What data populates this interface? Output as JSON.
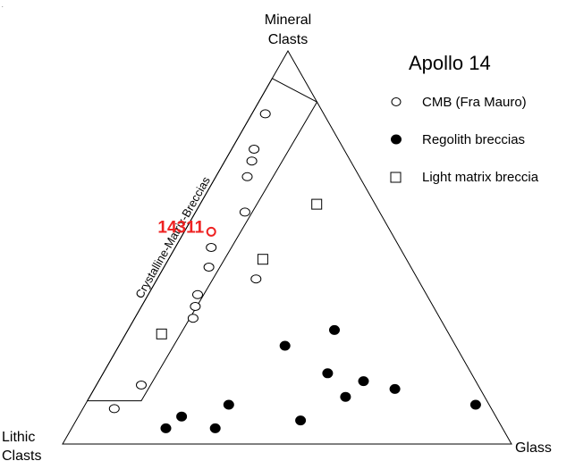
{
  "chart_data": {
    "type": "ternary-scatter",
    "title": "Apollo 14",
    "vertices": {
      "top": [
        "Mineral",
        "Clasts"
      ],
      "left": [
        "Lithic",
        "Clasts"
      ],
      "right": "Glass"
    },
    "field_label": "Crystalline-Matrix-Breccias",
    "annotation": {
      "label": "14311",
      "color": "#ee2222",
      "point": {
        "mineral": 0.54,
        "lithic": 0.4,
        "glass": 0.06
      }
    },
    "legend_position": "top-right",
    "legend": [
      {
        "key": "cmb",
        "label": "CMB (Fra Mauro)",
        "marker": "open-circle"
      },
      {
        "key": "regolith",
        "label": "Regolith breccias",
        "marker": "filled-circle"
      },
      {
        "key": "lightmatrix",
        "label": "Light matrix breccia",
        "marker": "open-square"
      }
    ],
    "series": [
      {
        "key": "cmb",
        "marker": "open-circle",
        "points": [
          {
            "mineral": 0.84,
            "lithic": 0.13,
            "glass": 0.03
          },
          {
            "mineral": 0.75,
            "lithic": 0.2,
            "glass": 0.05
          },
          {
            "mineral": 0.72,
            "lithic": 0.22,
            "glass": 0.06
          },
          {
            "mineral": 0.68,
            "lithic": 0.25,
            "glass": 0.07
          },
          {
            "mineral": 0.59,
            "lithic": 0.3,
            "glass": 0.11
          },
          {
            "mineral": 0.5,
            "lithic": 0.42,
            "glass": 0.08
          },
          {
            "mineral": 0.45,
            "lithic": 0.45,
            "glass": 0.1
          },
          {
            "mineral": 0.42,
            "lithic": 0.36,
            "glass": 0.22
          },
          {
            "mineral": 0.38,
            "lithic": 0.51,
            "glass": 0.11
          },
          {
            "mineral": 0.35,
            "lithic": 0.53,
            "glass": 0.12
          },
          {
            "mineral": 0.32,
            "lithic": 0.55,
            "glass": 0.13
          },
          {
            "mineral": 0.15,
            "lithic": 0.75,
            "glass": 0.1
          },
          {
            "mineral": 0.09,
            "lithic": 0.84,
            "glass": 0.07
          }
        ]
      },
      {
        "key": "regolith",
        "marker": "filled-circle",
        "points": [
          {
            "mineral": 0.29,
            "lithic": 0.25,
            "glass": 0.46
          },
          {
            "mineral": 0.25,
            "lithic": 0.38,
            "glass": 0.37
          },
          {
            "mineral": 0.18,
            "lithic": 0.32,
            "glass": 0.5
          },
          {
            "mineral": 0.16,
            "lithic": 0.25,
            "glass": 0.59
          },
          {
            "mineral": 0.14,
            "lithic": 0.19,
            "glass": 0.67
          },
          {
            "mineral": 0.12,
            "lithic": 0.31,
            "glass": 0.57
          },
          {
            "mineral": 0.1,
            "lithic": 0.58,
            "glass": 0.32
          },
          {
            "mineral": 0.1,
            "lithic": 0.03,
            "glass": 0.87
          },
          {
            "mineral": 0.06,
            "lithic": 0.44,
            "glass": 0.5
          },
          {
            "mineral": 0.07,
            "lithic": 0.7,
            "glass": 0.23
          },
          {
            "mineral": 0.04,
            "lithic": 0.64,
            "glass": 0.32
          },
          {
            "mineral": 0.04,
            "lithic": 0.75,
            "glass": 0.21
          }
        ]
      },
      {
        "key": "lightmatrix",
        "marker": "open-square",
        "points": [
          {
            "mineral": 0.61,
            "lithic": 0.13,
            "glass": 0.26
          },
          {
            "mineral": 0.47,
            "lithic": 0.32,
            "glass": 0.21
          },
          {
            "mineral": 0.28,
            "lithic": 0.64,
            "glass": 0.08
          }
        ]
      }
    ],
    "field_outline": [
      {
        "mineral": 0.93,
        "lithic": 0.07,
        "glass": 0.0
      },
      {
        "mineral": 0.87,
        "lithic": 0.0,
        "glass": 0.13
      },
      {
        "mineral": 0.11,
        "lithic": 0.77,
        "glass": 0.12
      },
      {
        "mineral": 0.11,
        "lithic": 0.89,
        "glass": 0.0
      }
    ],
    "colors": {
      "line": "#000000",
      "accent": "#ee2222"
    }
  },
  "corner_mark": "."
}
